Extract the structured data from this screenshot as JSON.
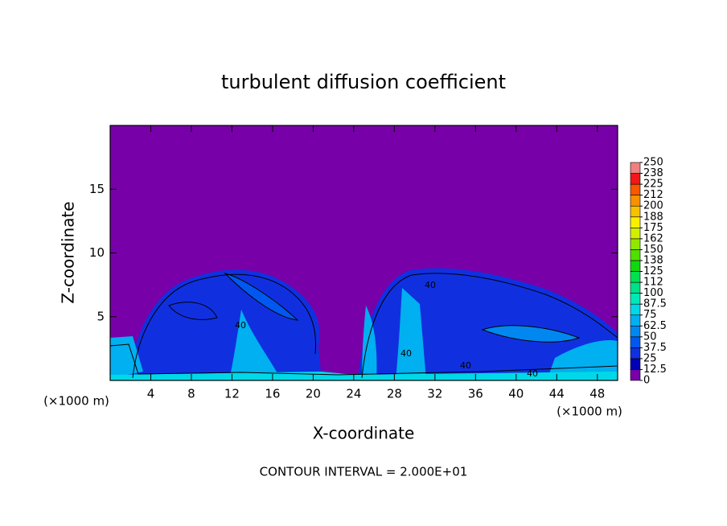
{
  "chart_data": {
    "type": "contour",
    "title": "turbulent diffusion coefficient",
    "xlabel": "X-coordinate",
    "ylabel": "Z-coordinate",
    "x_unit_left": "(×1000 m)",
    "x_unit_right": "(×1000 m)",
    "annotation": "CONTOUR INTERVAL = 2.000E+01",
    "xlim": [
      0,
      50
    ],
    "ylim": [
      0,
      20
    ],
    "xticks": [
      4,
      8,
      12,
      16,
      20,
      24,
      28,
      32,
      36,
      40,
      44,
      48
    ],
    "yticks": [
      5,
      10,
      15
    ],
    "contour_labels": [
      "40",
      "40",
      "40",
      "40",
      "40"
    ],
    "colorbar": {
      "levels": [
        0,
        12.5,
        25,
        37.5,
        50,
        62.5,
        75,
        87.5,
        100,
        {
          "value": 112.5,
          "label": "112"
        },
        125,
        {
          "value": 137.5,
          "label": "138"
        },
        150,
        {
          "value": 162.5,
          "label": "162"
        },
        175,
        {
          "value": 187.5,
          "label": "188"
        },
        200,
        {
          "value": 212.5,
          "label": "212"
        },
        225,
        {
          "value": 237.5,
          "label": "238"
        },
        250
      ],
      "colors": [
        "#7800a8",
        "#0000b4",
        "#1030e0",
        "#0058f0",
        "#0088f0",
        "#00b0f0",
        "#00d8e8",
        "#00e8b8",
        "#00e088",
        "#00e050",
        "#10d810",
        "#50e000",
        "#90e800",
        "#d0f000",
        "#f8f000",
        "#f8c000",
        "#f89000",
        "#f85800",
        "#f01818",
        "#f08080"
      ]
    }
  }
}
